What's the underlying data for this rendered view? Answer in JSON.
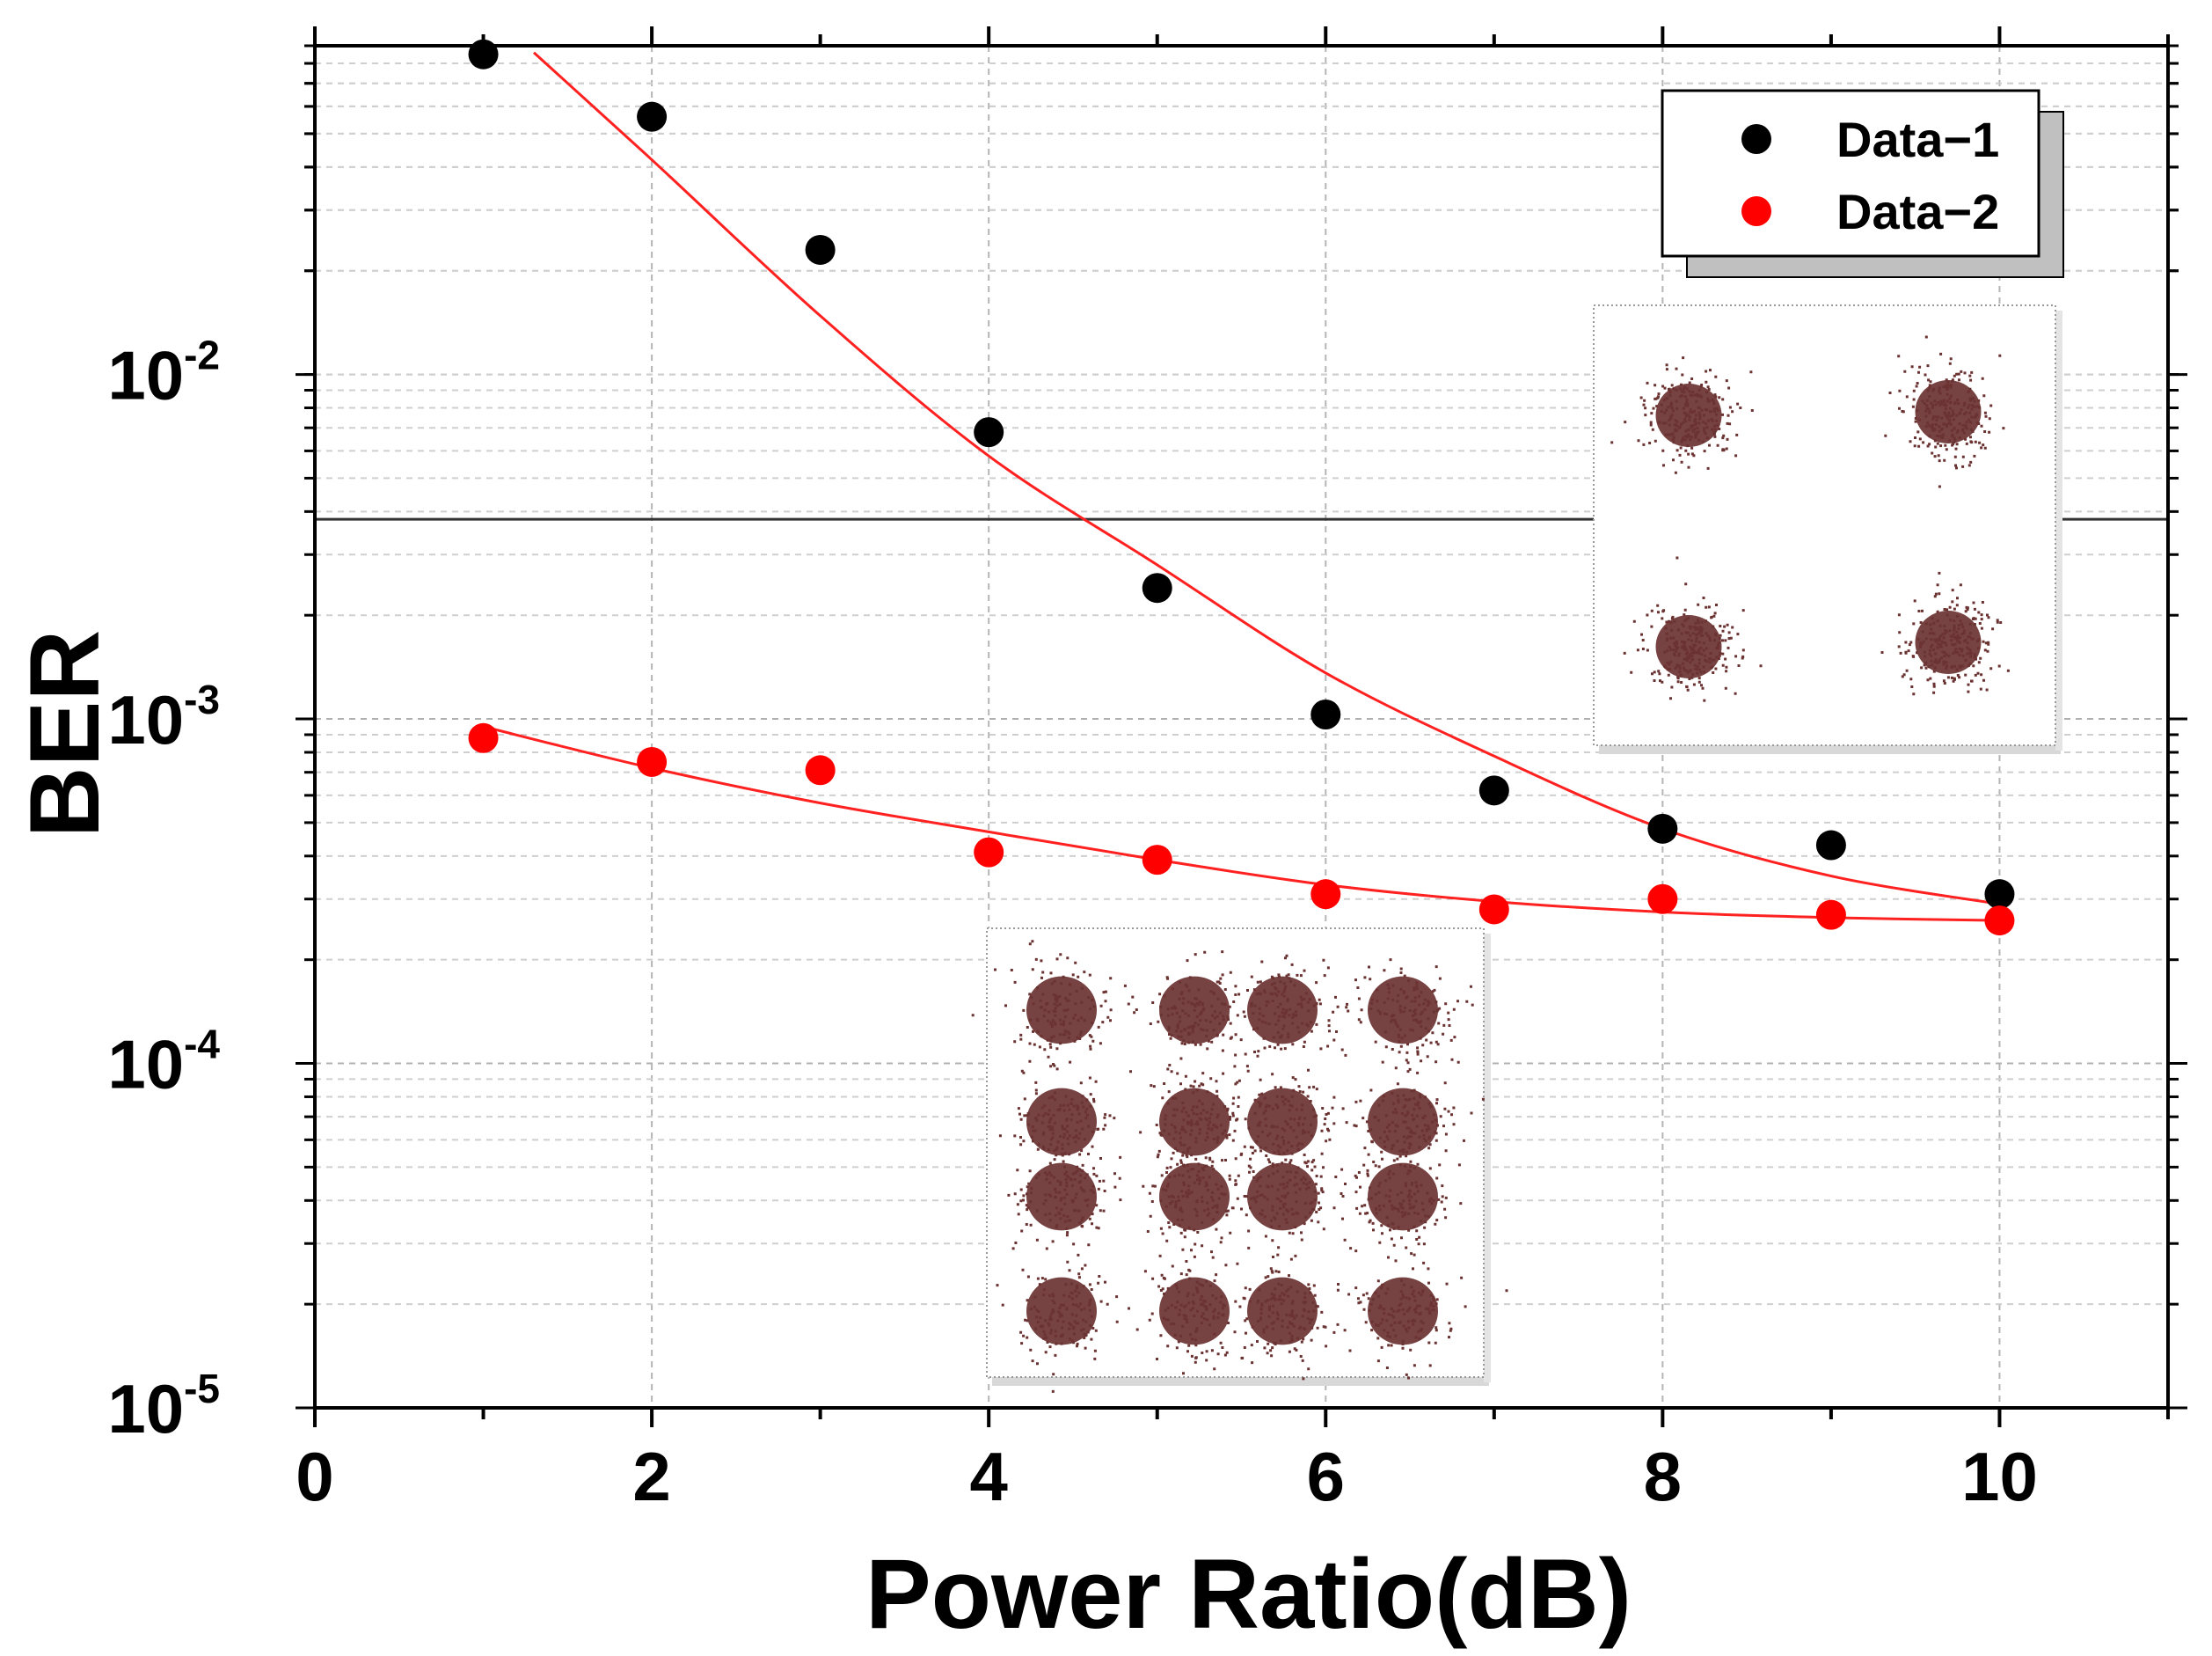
{
  "chart_data": {
    "type": "scatter",
    "title": "",
    "xlabel": "Power Ratio(dB)",
    "ylabel": "BER",
    "yscale": "log",
    "xlim": [
      0,
      11
    ],
    "ylim": [
      1e-05,
      0.09
    ],
    "x_ticks": [
      0,
      2,
      4,
      6,
      8,
      10
    ],
    "x_tick_labels": [
      "0",
      "2",
      "4",
      "6",
      "8",
      "10"
    ],
    "y_ticks": [
      {
        "value": 0.01,
        "base": "10",
        "exp": "-2"
      },
      {
        "value": 0.001,
        "base": "10",
        "exp": "-3"
      },
      {
        "value": 0.0001,
        "base": "10",
        "exp": "-4"
      },
      {
        "value": 1e-05,
        "base": "10",
        "exp": "-5"
      }
    ],
    "grid": true,
    "threshold_line": 0.0038,
    "legend": {
      "position": "top-right"
    },
    "series": [
      {
        "name": "Data−1",
        "color": "#000000",
        "x": [
          1,
          2,
          3,
          4,
          5,
          6,
          7,
          8,
          9,
          10
        ],
        "y": [
          0.085,
          0.056,
          0.023,
          0.0068,
          0.0024,
          0.00103,
          0.00062,
          0.00048,
          0.00043,
          0.00031
        ],
        "fit": {
          "color": "#ff2020",
          "x": [
            1.3,
            2,
            3,
            4,
            5,
            6,
            7,
            8,
            9,
            10
          ],
          "y": [
            0.086,
            0.042,
            0.0148,
            0.0058,
            0.0028,
            0.00136,
            0.00078,
            0.00048,
            0.00035,
            0.00029
          ]
        }
      },
      {
        "name": "Data−2",
        "color": "#ff0000",
        "x": [
          1,
          2,
          3,
          4,
          5,
          6,
          7,
          8,
          9,
          10
        ],
        "y": [
          0.00088,
          0.00075,
          0.00071,
          0.00041,
          0.00039,
          0.00031,
          0.00028,
          0.0003,
          0.00027,
          0.00026
        ],
        "fit": {
          "color": "#ff2020",
          "x": [
            1,
            2,
            3,
            4,
            5,
            6,
            7,
            8,
            9,
            10
          ],
          "y": [
            0.00095,
            0.00072,
            0.00057,
            0.00047,
            0.00039,
            0.00033,
            0.000295,
            0.000275,
            0.000265,
            0.00026
          ]
        }
      }
    ],
    "insets": [
      {
        "name": "qpsk-constellation",
        "grid": [
          2,
          2
        ],
        "color": "#6b3232"
      },
      {
        "name": "16qam-constellation",
        "grid": [
          4,
          4
        ],
        "color": "#6b3232"
      }
    ]
  }
}
